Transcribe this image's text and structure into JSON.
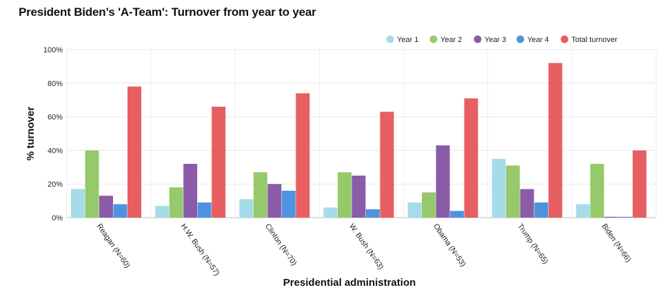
{
  "chart_data": {
    "type": "bar",
    "title": "President Biden’s 'A-Team': Turnover from year to year",
    "xlabel": "Presidential administration",
    "ylabel": "% turnover",
    "ylim": [
      0,
      100
    ],
    "y_ticks": [
      "0%",
      "20%",
      "40%",
      "60%",
      "80%",
      "100%"
    ],
    "y_tick_values": [
      0,
      20,
      40,
      60,
      80,
      100
    ],
    "grid": true,
    "legend_position": "top-right",
    "categories": [
      "Reagan (N=60)",
      "H.W. Bush (N=57)",
      "Clinton (N=70)",
      "W. Bush (N=63)",
      "Obama (N=53)",
      "Trump (N=65)",
      "Biden (N=66)"
    ],
    "series": [
      {
        "name": "Year 1",
        "color": "#a6dce9",
        "values": [
          17,
          7,
          11,
          6,
          9,
          35,
          8
        ]
      },
      {
        "name": "Year 2",
        "color": "#96c96a",
        "values": [
          40,
          18,
          27,
          27,
          15,
          31,
          32
        ]
      },
      {
        "name": "Year 3",
        "color": "#8a5ca8",
        "values": [
          13,
          32,
          20,
          25,
          43,
          17,
          0.5
        ]
      },
      {
        "name": "Year 4",
        "color": "#4f93e0",
        "values": [
          8,
          9,
          16,
          5,
          4,
          9,
          0.5
        ]
      },
      {
        "name": "Total turnover",
        "color": "#e85f61",
        "values": [
          78,
          66,
          74,
          63,
          71,
          92,
          40
        ]
      }
    ]
  }
}
